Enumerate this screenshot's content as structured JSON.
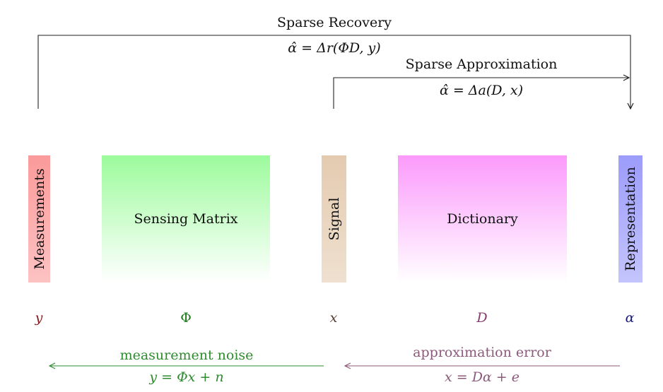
{
  "top_arrows": {
    "recovery": {
      "title": "Sparse Recovery",
      "formula": "α̂ = Δr(ΦD, y)"
    },
    "approximation": {
      "title": "Sparse Approximation",
      "formula": "α̂ = Δa(D, x)"
    }
  },
  "blocks": [
    {
      "id": "measurements",
      "label": "Measurements",
      "symbol": "y",
      "color": "#fb9a9a",
      "symbol_color": "#8b1a1a"
    },
    {
      "id": "sensing-matrix",
      "label": "Sensing Matrix",
      "symbol": "Φ",
      "color": "#9cfb9c",
      "symbol_color": "#1a7a1a"
    },
    {
      "id": "signal",
      "label": "Signal",
      "symbol": "x",
      "color": "#e4cbb0",
      "symbol_color": "#5a4030"
    },
    {
      "id": "dictionary",
      "label": "Dictionary",
      "symbol": "D",
      "color": "#fb9afb",
      "symbol_color": "#8b3a70"
    },
    {
      "id": "representation",
      "label": "Representation",
      "symbol": "α",
      "color": "#9c9cfb",
      "symbol_color": "#1a1a7a"
    }
  ],
  "bottom_arrows": {
    "noise": {
      "title": "measurement noise",
      "formula": "y = Φx + n",
      "color": "#2e8b2e"
    },
    "error": {
      "title": "approximation error",
      "formula": "x = Dα + e",
      "color": "#8b5a7a"
    }
  }
}
